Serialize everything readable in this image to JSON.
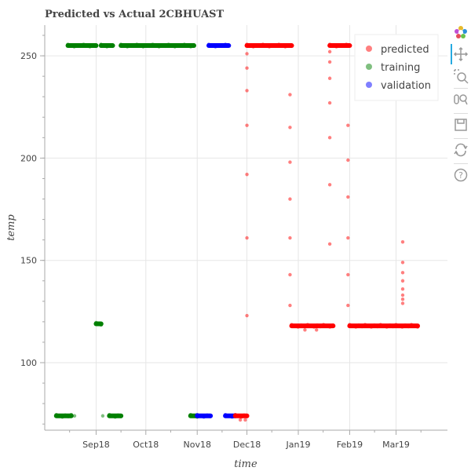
{
  "chart_data": {
    "type": "scatter",
    "title": "Predicted vs Actual 2CBHUAST",
    "xlabel": "time",
    "ylabel": "temp",
    "x_tick_labels": [
      "Sep18",
      "Oct18",
      "Nov18",
      "Dec18",
      "Jan19",
      "Feb19",
      "Mar19"
    ],
    "x_ticks": [
      "2018-09-01",
      "2018-10-01",
      "2018-11-01",
      "2018-12-01",
      "2019-01-01",
      "2019-02-01",
      "2019-03-01"
    ],
    "xlim": [
      "2018-08-01",
      "2019-04-01"
    ],
    "y_ticks": [
      100,
      150,
      200,
      250
    ],
    "ylim": [
      67,
      265
    ],
    "grid": true,
    "legend_position": "top-right",
    "series": [
      {
        "name": "training",
        "color": "#008000",
        "marker": "circle",
        "segments": [
          {
            "start": "2018-08-08",
            "end": "2018-08-17",
            "value": 74
          },
          {
            "start": "2018-08-15",
            "end": "2018-09-01",
            "value": 255
          },
          {
            "start": "2018-09-01",
            "end": "2018-09-04",
            "value": 119
          },
          {
            "start": "2018-09-04",
            "end": "2018-09-11",
            "value": 255
          },
          {
            "start": "2018-09-09",
            "end": "2018-09-16",
            "value": 74
          },
          {
            "start": "2018-09-16",
            "end": "2018-10-30",
            "value": 255
          },
          {
            "start": "2018-10-28",
            "end": "2018-11-01",
            "value": 74
          }
        ],
        "points": [
          {
            "x": "2018-08-19",
            "y": 74
          },
          {
            "x": "2018-09-05",
            "y": 74
          },
          {
            "x": "2018-09-09",
            "y": 74
          }
        ]
      },
      {
        "name": "validation",
        "color": "#0000ff",
        "marker": "circle",
        "segments": [
          {
            "start": "2018-11-01",
            "end": "2018-11-09",
            "value": 74
          },
          {
            "start": "2018-11-08",
            "end": "2018-11-20",
            "value": 255
          },
          {
            "start": "2018-11-18",
            "end": "2018-11-24",
            "value": 74
          }
        ],
        "points": []
      },
      {
        "name": "predicted",
        "color": "#ff0000",
        "marker": "circle",
        "segments": [
          {
            "start": "2018-11-24",
            "end": "2018-12-01",
            "value": 74
          },
          {
            "start": "2018-12-01",
            "end": "2018-12-28",
            "value": 255
          },
          {
            "start": "2018-12-28",
            "end": "2019-01-22",
            "value": 118
          },
          {
            "start": "2019-01-20",
            "end": "2019-02-01",
            "value": 255
          },
          {
            "start": "2019-02-01",
            "end": "2019-03-14",
            "value": 118
          }
        ],
        "points": [
          {
            "x": "2018-12-01",
            "y": 251
          },
          {
            "x": "2018-12-01",
            "y": 244
          },
          {
            "x": "2018-12-01",
            "y": 233
          },
          {
            "x": "2018-12-01",
            "y": 216
          },
          {
            "x": "2018-12-01",
            "y": 192
          },
          {
            "x": "2018-12-01",
            "y": 161
          },
          {
            "x": "2018-12-01",
            "y": 123
          },
          {
            "x": "2018-11-27",
            "y": 72
          },
          {
            "x": "2018-11-30",
            "y": 72
          },
          {
            "x": "2018-12-27",
            "y": 231
          },
          {
            "x": "2018-12-27",
            "y": 215
          },
          {
            "x": "2018-12-27",
            "y": 198
          },
          {
            "x": "2018-12-27",
            "y": 180
          },
          {
            "x": "2018-12-27",
            "y": 161
          },
          {
            "x": "2018-12-27",
            "y": 143
          },
          {
            "x": "2018-12-27",
            "y": 128
          },
          {
            "x": "2019-01-05",
            "y": 116
          },
          {
            "x": "2019-01-12",
            "y": 116
          },
          {
            "x": "2019-01-20",
            "y": 252
          },
          {
            "x": "2019-01-20",
            "y": 247
          },
          {
            "x": "2019-01-20",
            "y": 239
          },
          {
            "x": "2019-01-20",
            "y": 227
          },
          {
            "x": "2019-01-20",
            "y": 210
          },
          {
            "x": "2019-01-20",
            "y": 187
          },
          {
            "x": "2019-01-20",
            "y": 158
          },
          {
            "x": "2019-01-31",
            "y": 216
          },
          {
            "x": "2019-01-31",
            "y": 199
          },
          {
            "x": "2019-01-31",
            "y": 181
          },
          {
            "x": "2019-01-31",
            "y": 161
          },
          {
            "x": "2019-01-31",
            "y": 143
          },
          {
            "x": "2019-01-31",
            "y": 128
          },
          {
            "x": "2019-03-05",
            "y": 159
          },
          {
            "x": "2019-03-05",
            "y": 149
          },
          {
            "x": "2019-03-05",
            "y": 144
          },
          {
            "x": "2019-03-05",
            "y": 140
          },
          {
            "x": "2019-03-05",
            "y": 136
          },
          {
            "x": "2019-03-05",
            "y": 133
          },
          {
            "x": "2019-03-05",
            "y": 131
          },
          {
            "x": "2019-03-05",
            "y": 129
          }
        ]
      }
    ]
  },
  "legend": [
    {
      "label": "predicted",
      "color": "#ff0000"
    },
    {
      "label": "training",
      "color": "#008000"
    },
    {
      "label": "validation",
      "color": "#0000ff"
    }
  ],
  "toolbar": {
    "tools": [
      {
        "name": "bokeh-logo-icon"
      },
      {
        "name": "pan-icon"
      },
      {
        "name": "box-zoom-icon"
      },
      {
        "name": "wheel-zoom-icon"
      },
      {
        "name": "save-icon"
      },
      {
        "name": "reset-icon"
      },
      {
        "name": "help-icon"
      }
    ],
    "active_color": "#26aae1"
  }
}
